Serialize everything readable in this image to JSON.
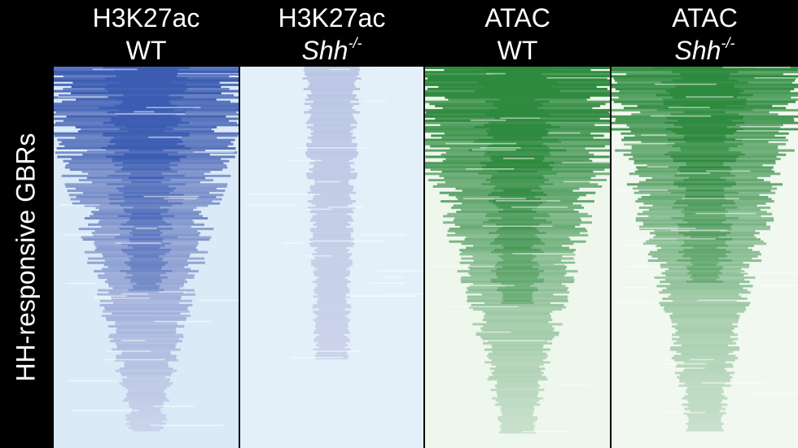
{
  "chart_data": {
    "type": "heatmap",
    "ylabel": "HH-responsive GBRs",
    "panels": [
      {
        "line1": "H3K27ac",
        "line2_base": "WT",
        "line2_sup": "",
        "italic": false,
        "color_low": "#ffffff",
        "color_high": "#3b5cb2",
        "background": "#dbeaf7",
        "signal": 0.9,
        "row_order": "descending_signal"
      },
      {
        "line1": "H3K27ac",
        "line2_base": "Shh",
        "line2_sup": "-/-",
        "italic": true,
        "color_low": "#ffffff",
        "color_high": "#3b5cb2",
        "background": "#e3f0fa",
        "signal": 0.12,
        "row_order": "descending_signal"
      },
      {
        "line1": "ATAC",
        "line2_base": "WT",
        "line2_sup": "",
        "italic": false,
        "color_low": "#ffffff",
        "color_high": "#2e8a3e",
        "background": "#eef7ec",
        "signal": 1.0,
        "row_order": "descending_signal"
      },
      {
        "line1": "ATAC",
        "line2_base": "Shh",
        "line2_sup": "-/-",
        "italic": true,
        "color_low": "#ffffff",
        "color_high": "#2e8a3e",
        "background": "#f1f8ef",
        "signal": 0.85,
        "row_order": "descending_signal"
      }
    ],
    "legend": "none",
    "grid": false
  }
}
